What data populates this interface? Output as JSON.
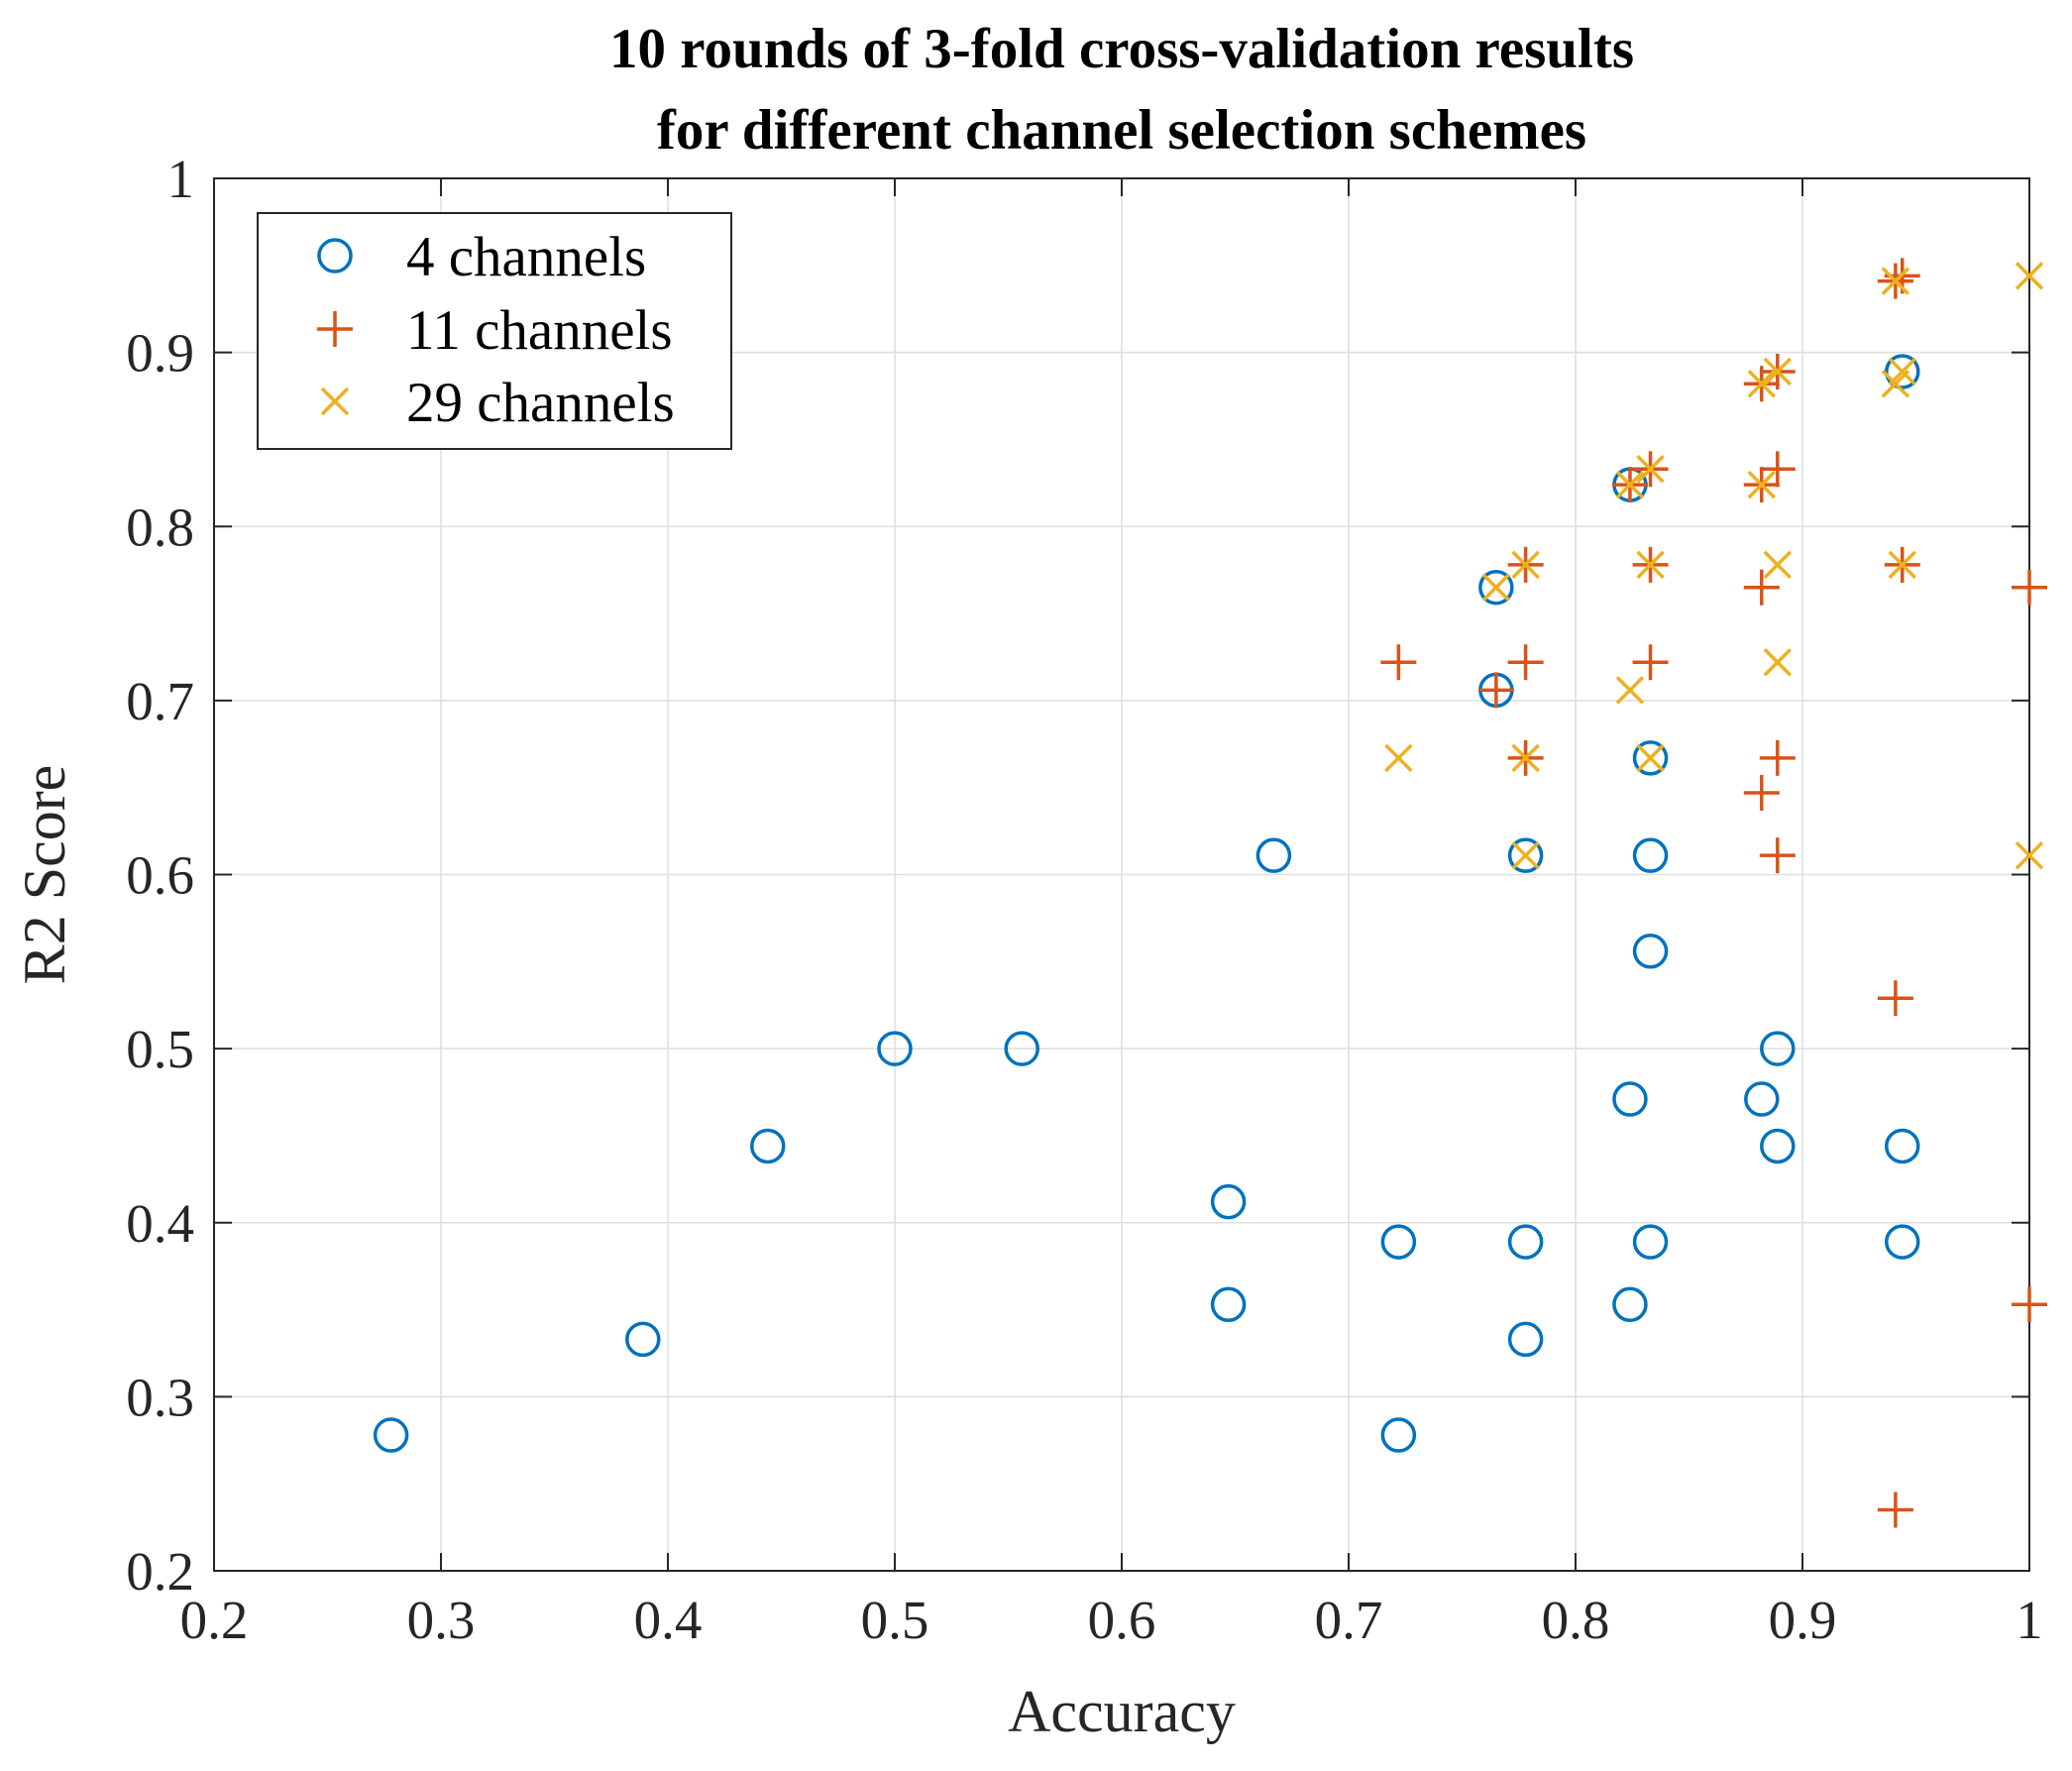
{
  "chart_data": {
    "type": "scatter",
    "title": [
      "10 rounds of 3-fold cross-validation results",
      "for different channel selection schemes"
    ],
    "xlabel": "Accuracy",
    "ylabel": "R2 Score",
    "xlim": [
      0.2,
      1
    ],
    "ylim": [
      0.2,
      1
    ],
    "xticks": [
      0.2,
      0.3,
      0.4,
      0.5,
      0.6,
      0.7,
      0.8,
      0.9,
      1
    ],
    "yticks": [
      0.2,
      0.3,
      0.4,
      0.5,
      0.6,
      0.7,
      0.8,
      0.9,
      1
    ],
    "xtick_labels": [
      "0.2",
      "0.3",
      "0.4",
      "0.5",
      "0.6",
      "0.7",
      "0.8",
      "0.9",
      "1"
    ],
    "ytick_labels": [
      "0.2",
      "0.3",
      "0.4",
      "0.5",
      "0.6",
      "0.7",
      "0.8",
      "0.9",
      "1"
    ],
    "grid": true,
    "legend_position": "top-left",
    "series": [
      {
        "name": "4 channels",
        "marker": "circle",
        "color": "#0072BD",
        "points": [
          [
            0.278,
            0.278
          ],
          [
            0.389,
            0.333
          ],
          [
            0.444,
            0.444
          ],
          [
            0.5,
            0.5
          ],
          [
            0.556,
            0.5
          ],
          [
            0.647,
            0.412
          ],
          [
            0.647,
            0.353
          ],
          [
            0.667,
            0.611
          ],
          [
            0.722,
            0.389
          ],
          [
            0.722,
            0.278
          ],
          [
            0.765,
            0.765
          ],
          [
            0.765,
            0.706
          ],
          [
            0.778,
            0.611
          ],
          [
            0.778,
            0.389
          ],
          [
            0.778,
            0.333
          ],
          [
            0.824,
            0.824
          ],
          [
            0.824,
            0.471
          ],
          [
            0.824,
            0.353
          ],
          [
            0.833,
            0.667
          ],
          [
            0.833,
            0.611
          ],
          [
            0.833,
            0.556
          ],
          [
            0.833,
            0.389
          ],
          [
            0.882,
            0.471
          ],
          [
            0.889,
            0.5
          ],
          [
            0.889,
            0.444
          ],
          [
            0.944,
            0.889
          ],
          [
            0.944,
            0.444
          ],
          [
            0.944,
            0.389
          ]
        ]
      },
      {
        "name": "11 channels",
        "marker": "plus",
        "color": "#D95319",
        "points": [
          [
            0.722,
            0.722
          ],
          [
            0.765,
            0.706
          ],
          [
            0.778,
            0.778
          ],
          [
            0.778,
            0.722
          ],
          [
            0.778,
            0.667
          ],
          [
            0.824,
            0.824
          ],
          [
            0.833,
            0.833
          ],
          [
            0.833,
            0.778
          ],
          [
            0.833,
            0.722
          ],
          [
            0.882,
            0.882
          ],
          [
            0.882,
            0.824
          ],
          [
            0.882,
            0.765
          ],
          [
            0.882,
            0.647
          ],
          [
            0.889,
            0.889
          ],
          [
            0.889,
            0.833
          ],
          [
            0.889,
            0.667
          ],
          [
            0.889,
            0.611
          ],
          [
            0.941,
            0.941
          ],
          [
            0.941,
            0.529
          ],
          [
            0.941,
            0.235
          ],
          [
            0.944,
            0.944
          ],
          [
            0.944,
            0.778
          ],
          [
            1.0,
            0.765
          ],
          [
            1.0,
            0.353
          ]
        ]
      },
      {
        "name": "29 channels",
        "marker": "x",
        "color": "#EDB120",
        "points": [
          [
            0.722,
            0.667
          ],
          [
            0.765,
            0.765
          ],
          [
            0.778,
            0.778
          ],
          [
            0.778,
            0.667
          ],
          [
            0.778,
            0.611
          ],
          [
            0.824,
            0.824
          ],
          [
            0.824,
            0.706
          ],
          [
            0.833,
            0.833
          ],
          [
            0.833,
            0.778
          ],
          [
            0.833,
            0.667
          ],
          [
            0.882,
            0.882
          ],
          [
            0.882,
            0.824
          ],
          [
            0.889,
            0.889
          ],
          [
            0.889,
            0.778
          ],
          [
            0.889,
            0.722
          ],
          [
            0.941,
            0.941
          ],
          [
            0.941,
            0.882
          ],
          [
            0.944,
            0.889
          ],
          [
            0.944,
            0.778
          ],
          [
            1.0,
            0.944
          ],
          [
            1.0,
            0.611
          ]
        ]
      }
    ]
  }
}
